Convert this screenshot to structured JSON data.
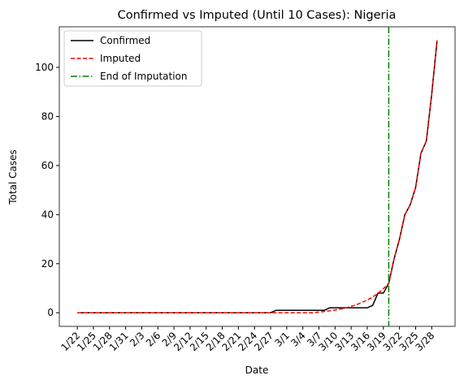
{
  "chart_data": {
    "type": "line",
    "title": "Confirmed vs Imputed (Until 10 Cases): Nigeria",
    "x_label": "Date",
    "y_label": "Total Cases",
    "categories": [
      "1/22",
      null,
      null,
      "1/25",
      null,
      null,
      "1/28",
      null,
      null,
      "1/31",
      null,
      null,
      "2/3",
      null,
      null,
      "2/6",
      null,
      null,
      "2/9",
      null,
      null,
      "2/12",
      null,
      null,
      "2/15",
      null,
      null,
      "2/18",
      null,
      null,
      "2/21",
      null,
      null,
      "2/24",
      null,
      null,
      "2/27",
      null,
      null,
      "3/1",
      null,
      null,
      "3/4",
      null,
      null,
      "3/7",
      null,
      null,
      "3/10",
      null,
      null,
      "3/13",
      null,
      null,
      "3/16",
      null,
      null,
      "3/19",
      null,
      null,
      "3/22",
      null,
      null,
      "3/25",
      null,
      null,
      "3/28",
      null
    ],
    "series": [
      {
        "name": "Confirmed",
        "color": "#000000",
        "style": "solid",
        "values": [
          0,
          0,
          0,
          0,
          0,
          0,
          0,
          0,
          0,
          0,
          0,
          0,
          0,
          0,
          0,
          0,
          0,
          0,
          0,
          0,
          0,
          0,
          0,
          0,
          0,
          0,
          0,
          0,
          0,
          0,
          0,
          0,
          0,
          0,
          0,
          0,
          0,
          1,
          1,
          1,
          1,
          1,
          1,
          1,
          1,
          1,
          1,
          2,
          2,
          2,
          2,
          2,
          2,
          2,
          2,
          3,
          8,
          8,
          12,
          22,
          30,
          40,
          44,
          51,
          65,
          70,
          89,
          111
        ]
      },
      {
        "name": "Imputed",
        "color": "#ff0000",
        "style": "dashed",
        "values": [
          0,
          0,
          0,
          0,
          0,
          0,
          0,
          0,
          0,
          0,
          0,
          0,
          0,
          0,
          0,
          0,
          0,
          0,
          0,
          0,
          0,
          0,
          0,
          0,
          0,
          0,
          0,
          0,
          0,
          0,
          0,
          0,
          0,
          0,
          0,
          0,
          0,
          0,
          0,
          0,
          0,
          0,
          0,
          0,
          0,
          0.3,
          0.5,
          0.8,
          1.1,
          1.5,
          2,
          2.6,
          3.3,
          4.2,
          5.2,
          6.4,
          7.9,
          9.8,
          12,
          22,
          30,
          40,
          44,
          51,
          65,
          70,
          89,
          111
        ]
      },
      {
        "name": "End of Imputation",
        "color": "#008000",
        "style": "dashdot",
        "x": 58
      }
    ],
    "ylim": [
      -5.55,
      116.55
    ],
    "yticks": [
      0,
      20,
      40,
      60,
      80,
      100
    ],
    "legend": "upper left"
  }
}
